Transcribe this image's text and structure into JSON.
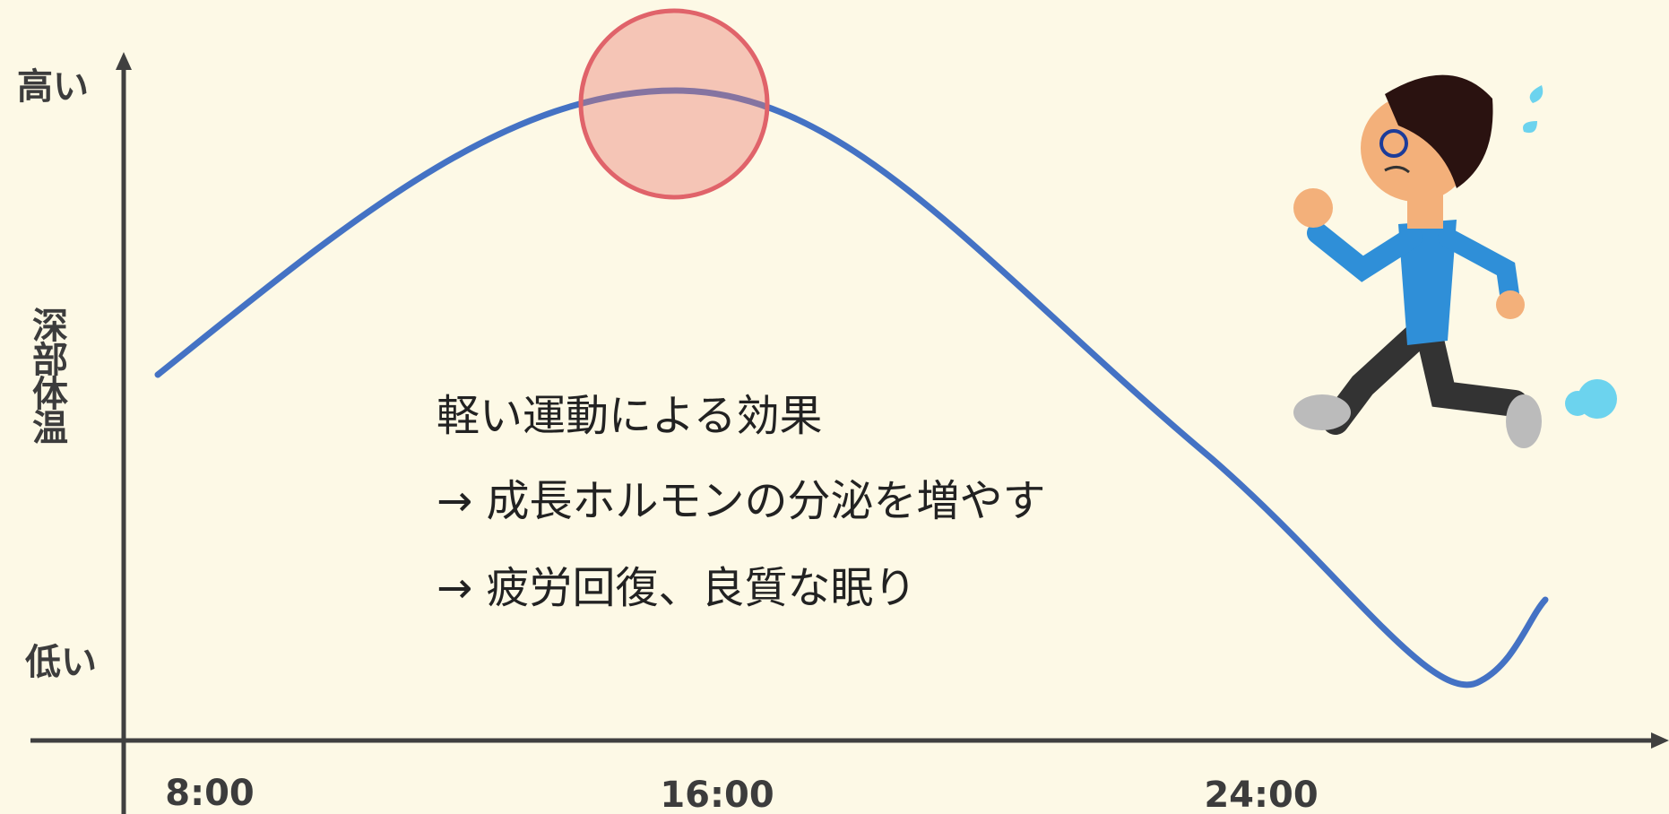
{
  "y_axis": {
    "title": "深部体温",
    "high_label": "高い",
    "low_label": "低い"
  },
  "x_axis": {
    "labels": [
      "8:00",
      "16:00",
      "24:00"
    ]
  },
  "note": {
    "lines": [
      "軽い運動による効果",
      "→ 成長ホルモンの分泌を増やす",
      "→ 疲労回復、良質な眠り"
    ]
  }
}
